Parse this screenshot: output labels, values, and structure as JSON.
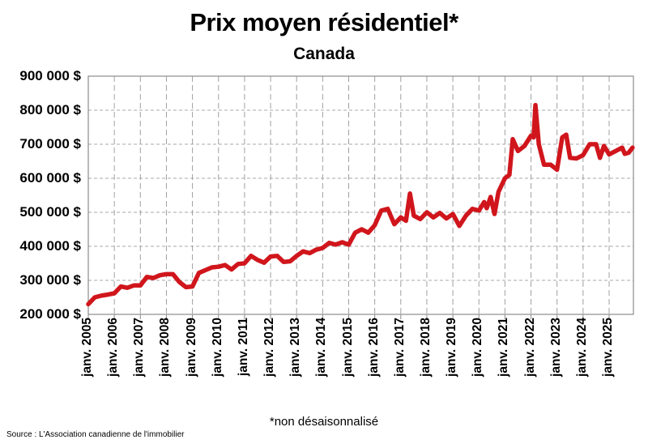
{
  "chart_data": {
    "type": "line",
    "title": "Prix moyen résidentiel*",
    "subtitle": "Canada",
    "xlabel": "",
    "ylabel": "",
    "ylim": [
      200000,
      900000
    ],
    "y_ticks": [
      "900 000 $",
      "800 000 $",
      "700 000 $",
      "600 000 $",
      "500 000 $",
      "400 000 $",
      "300 000 $",
      "200 000 $"
    ],
    "y_tick_values": [
      900000,
      800000,
      700000,
      600000,
      500000,
      400000,
      300000,
      200000
    ],
    "x_ticks": [
      "janv. 2005",
      "janv. 2006",
      "janv. 2007",
      "janv. 2008",
      "janv. 2009",
      "janv. 2010",
      "janv. 2011",
      "janv. 2012",
      "janv. 2013",
      "janv. 2014",
      "janv. 2015",
      "janv. 2016",
      "janv. 2017",
      "janv. 2018",
      "janv. 2019",
      "janv. 2020",
      "janv. 2021",
      "janv. 2022",
      "janv. 2023",
      "janv. 2024",
      "janv. 2025"
    ],
    "grid": true,
    "legend": "none",
    "line_color": "#d0161c",
    "series": [
      {
        "name": "Prix moyen résidentiel",
        "x": [
          2005.0,
          2005.25,
          2005.5,
          2005.75,
          2006.0,
          2006.25,
          2006.5,
          2006.75,
          2007.0,
          2007.25,
          2007.5,
          2007.75,
          2008.0,
          2008.25,
          2008.5,
          2008.75,
          2009.0,
          2009.25,
          2009.5,
          2009.75,
          2010.0,
          2010.25,
          2010.5,
          2010.75,
          2011.0,
          2011.25,
          2011.5,
          2011.75,
          2012.0,
          2012.25,
          2012.5,
          2012.75,
          2013.0,
          2013.25,
          2013.5,
          2013.75,
          2014.0,
          2014.25,
          2014.5,
          2014.75,
          2015.0,
          2015.25,
          2015.5,
          2015.75,
          2016.0,
          2016.25,
          2016.5,
          2016.75,
          2017.0,
          2017.2,
          2017.35,
          2017.5,
          2017.75,
          2018.0,
          2018.25,
          2018.5,
          2018.75,
          2019.0,
          2019.25,
          2019.5,
          2019.75,
          2020.0,
          2020.2,
          2020.3,
          2020.45,
          2020.6,
          2020.75,
          2021.0,
          2021.17,
          2021.3,
          2021.5,
          2021.75,
          2022.0,
          2022.1,
          2022.17,
          2022.3,
          2022.5,
          2022.75,
          2023.0,
          2023.2,
          2023.35,
          2023.5,
          2023.75,
          2024.0,
          2024.25,
          2024.5,
          2024.65,
          2024.8,
          2025.0,
          2025.25,
          2025.5,
          2025.6,
          2025.75,
          2025.9
        ],
        "values": [
          230000,
          250000,
          255000,
          258000,
          262000,
          282000,
          278000,
          285000,
          285000,
          310000,
          307000,
          315000,
          318000,
          318000,
          295000,
          280000,
          282000,
          322000,
          330000,
          338000,
          340000,
          345000,
          332000,
          348000,
          350000,
          372000,
          360000,
          352000,
          370000,
          372000,
          354000,
          356000,
          372000,
          385000,
          380000,
          390000,
          395000,
          410000,
          405000,
          412000,
          405000,
          440000,
          450000,
          440000,
          462000,
          505000,
          510000,
          465000,
          485000,
          475000,
          555000,
          490000,
          480000,
          500000,
          485000,
          498000,
          482000,
          495000,
          460000,
          490000,
          510000,
          505000,
          530000,
          512000,
          545000,
          495000,
          560000,
          600000,
          610000,
          715000,
          680000,
          695000,
          725000,
          720000,
          815000,
          700000,
          640000,
          640000,
          625000,
          720000,
          728000,
          660000,
          658000,
          668000,
          700000,
          700000,
          660000,
          695000,
          670000,
          680000,
          690000,
          672000,
          675000,
          690000
        ]
      }
    ]
  },
  "footnote": "*non désaisonnalisé",
  "source": "Source : L'Association canadienne de l'immobilier"
}
